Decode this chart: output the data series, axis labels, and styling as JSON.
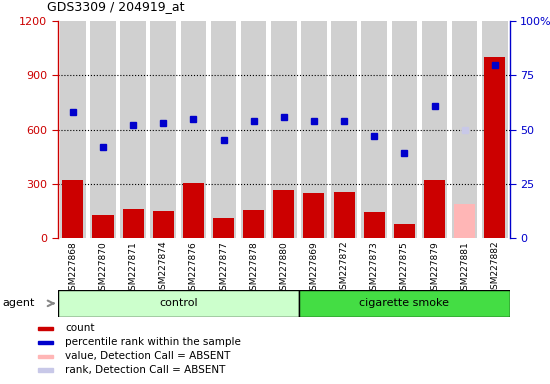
{
  "title": "GDS3309 / 204919_at",
  "samples": [
    "GSM227868",
    "GSM227870",
    "GSM227871",
    "GSM227874",
    "GSM227876",
    "GSM227877",
    "GSM227878",
    "GSM227880",
    "GSM227869",
    "GSM227872",
    "GSM227873",
    "GSM227875",
    "GSM227879",
    "GSM227881",
    "GSM227882"
  ],
  "count_values": [
    320,
    130,
    160,
    150,
    305,
    110,
    155,
    265,
    250,
    255,
    145,
    80,
    320,
    190,
    1000
  ],
  "count_absent": [
    false,
    false,
    false,
    false,
    false,
    false,
    false,
    false,
    false,
    false,
    false,
    false,
    false,
    true,
    false
  ],
  "rank_values_pct": [
    58,
    42,
    52,
    53,
    55,
    45,
    54,
    56,
    54,
    54,
    47,
    39,
    61,
    50,
    80
  ],
  "rank_absent": [
    false,
    false,
    false,
    false,
    false,
    false,
    false,
    false,
    false,
    false,
    false,
    false,
    false,
    true,
    false
  ],
  "control_count": 8,
  "ylim_left": [
    0,
    1200
  ],
  "ylim_right": [
    0,
    100
  ],
  "yticks_left": [
    0,
    300,
    600,
    900,
    1200
  ],
  "yticks_right": [
    0,
    25,
    50,
    75,
    100
  ],
  "ytick_labels_left": [
    "0",
    "300",
    "600",
    "900",
    "1200"
  ],
  "ytick_labels_right": [
    "0",
    "25",
    "50",
    "75",
    "100%"
  ],
  "bar_color_normal": "#cc0000",
  "bar_color_absent": "#ffb6b6",
  "rank_color_normal": "#0000cc",
  "rank_color_absent": "#c8c8e8",
  "control_label": "control",
  "smoke_label": "cigarette smoke",
  "agent_label": "agent",
  "legend_items": [
    "count",
    "percentile rank within the sample",
    "value, Detection Call = ABSENT",
    "rank, Detection Call = ABSENT"
  ],
  "legend_colors": [
    "#cc0000",
    "#0000cc",
    "#ffb6b6",
    "#c8c8e8"
  ],
  "bg_control": "#ccffcc",
  "bg_smoke": "#44dd44",
  "bar_bg": "#d0d0d0"
}
